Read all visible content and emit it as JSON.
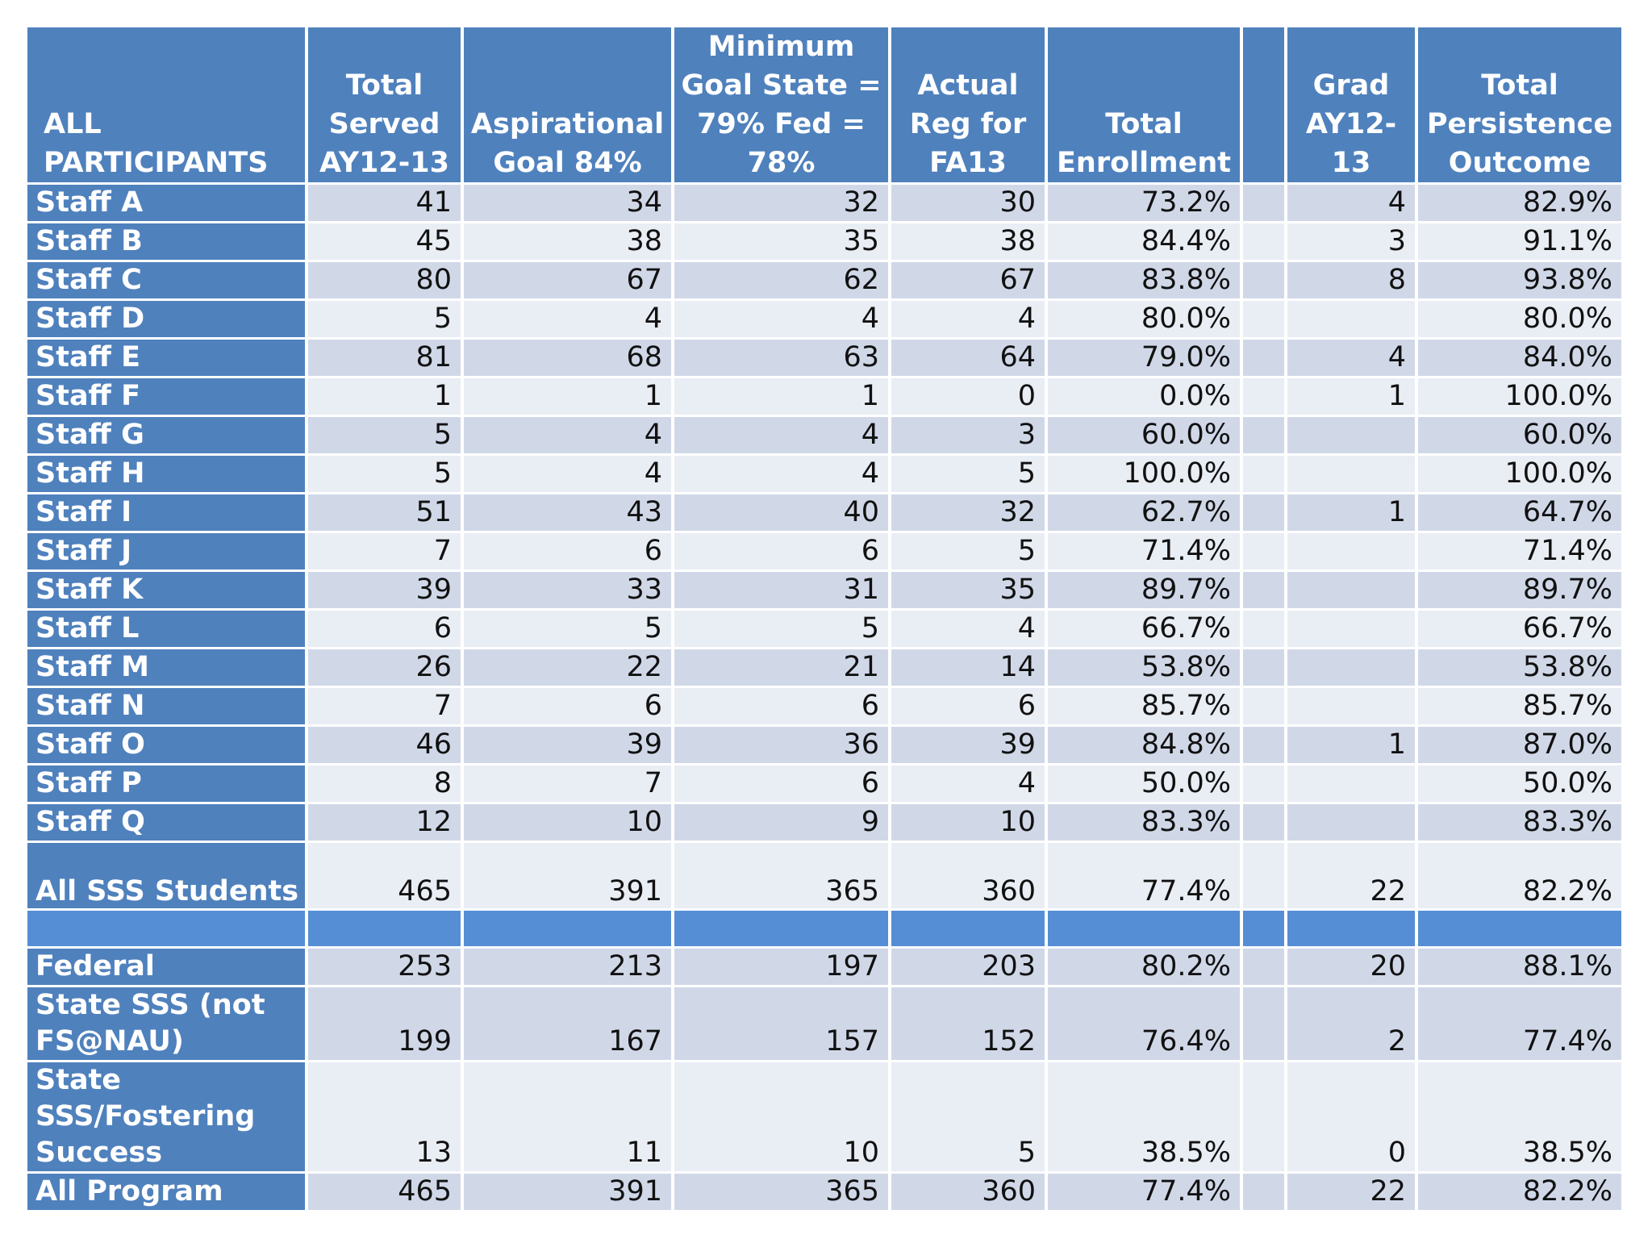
{
  "headers": [
    "ALL PARTICIPANTS",
    "Total Served AY12-13",
    "Aspirational Goal 84%",
    "Minimum Goal State = 79% Fed = 78%",
    "Actual Reg for FA13",
    "Total Enrollment",
    "",
    "Grad AY12-13",
    "Total Persistence Outcome"
  ],
  "staff_rows": [
    {
      "name": "Staff A",
      "served": "41",
      "aspirational": "34",
      "minimum": "32",
      "actual": "30",
      "enrollment": "73.2%",
      "grad": "4",
      "persistence": "82.9%"
    },
    {
      "name": "Staff B",
      "served": "45",
      "aspirational": "38",
      "minimum": "35",
      "actual": "38",
      "enrollment": "84.4%",
      "grad": "3",
      "persistence": "91.1%"
    },
    {
      "name": "Staff C",
      "served": "80",
      "aspirational": "67",
      "minimum": "62",
      "actual": "67",
      "enrollment": "83.8%",
      "grad": "8",
      "persistence": "93.8%"
    },
    {
      "name": "Staff D",
      "served": "5",
      "aspirational": "4",
      "minimum": "4",
      "actual": "4",
      "enrollment": "80.0%",
      "grad": "",
      "persistence": "80.0%"
    },
    {
      "name": "Staff E",
      "served": "81",
      "aspirational": "68",
      "minimum": "63",
      "actual": "64",
      "enrollment": "79.0%",
      "grad": "4",
      "persistence": "84.0%"
    },
    {
      "name": "Staff F",
      "served": "1",
      "aspirational": "1",
      "minimum": "1",
      "actual": "0",
      "enrollment": "0.0%",
      "grad": "1",
      "persistence": "100.0%"
    },
    {
      "name": "Staff G",
      "served": "5",
      "aspirational": "4",
      "minimum": "4",
      "actual": "3",
      "enrollment": "60.0%",
      "grad": "",
      "persistence": "60.0%"
    },
    {
      "name": "Staff H",
      "served": "5",
      "aspirational": "4",
      "minimum": "4",
      "actual": "5",
      "enrollment": "100.0%",
      "grad": "",
      "persistence": "100.0%"
    },
    {
      "name": "Staff I",
      "served": "51",
      "aspirational": "43",
      "minimum": "40",
      "actual": "32",
      "enrollment": "62.7%",
      "grad": "1",
      "persistence": "64.7%"
    },
    {
      "name": "Staff J",
      "served": "7",
      "aspirational": "6",
      "minimum": "6",
      "actual": "5",
      "enrollment": "71.4%",
      "grad": "",
      "persistence": "71.4%"
    },
    {
      "name": "Staff K",
      "served": "39",
      "aspirational": "33",
      "minimum": "31",
      "actual": "35",
      "enrollment": "89.7%",
      "grad": "",
      "persistence": "89.7%"
    },
    {
      "name": "Staff L",
      "served": "6",
      "aspirational": "5",
      "minimum": "5",
      "actual": "4",
      "enrollment": "66.7%",
      "grad": "",
      "persistence": "66.7%"
    },
    {
      "name": "Staff M",
      "served": "26",
      "aspirational": "22",
      "minimum": "21",
      "actual": "14",
      "enrollment": "53.8%",
      "grad": "",
      "persistence": "53.8%"
    },
    {
      "name": "Staff N",
      "served": "7",
      "aspirational": "6",
      "minimum": "6",
      "actual": "6",
      "enrollment": "85.7%",
      "grad": "",
      "persistence": "85.7%"
    },
    {
      "name": "Staff O",
      "served": "46",
      "aspirational": "39",
      "minimum": "36",
      "actual": "39",
      "enrollment": "84.8%",
      "grad": "1",
      "persistence": "87.0%"
    },
    {
      "name": "Staff P",
      "served": "8",
      "aspirational": "7",
      "minimum": "6",
      "actual": "4",
      "enrollment": "50.0%",
      "grad": "",
      "persistence": "50.0%"
    },
    {
      "name": "Staff Q",
      "served": "12",
      "aspirational": "10",
      "minimum": "9",
      "actual": "10",
      "enrollment": "83.3%",
      "grad": "",
      "persistence": "83.3%"
    }
  ],
  "all_sss": {
    "name": "All SSS Students",
    "served": "465",
    "aspirational": "391",
    "minimum": "365",
    "actual": "360",
    "enrollment": "77.4%",
    "grad": "22",
    "persistence": "82.2%"
  },
  "program_rows": [
    {
      "name": "Federal",
      "served": "253",
      "aspirational": "213",
      "minimum": "197",
      "actual": "203",
      "enrollment": "80.2%",
      "grad": "20",
      "persistence": "88.1%"
    },
    {
      "name": "State SSS (not FS@NAU)",
      "served": "199",
      "aspirational": "167",
      "minimum": "157",
      "actual": "152",
      "enrollment": "76.4%",
      "grad": "2",
      "persistence": "77.4%"
    },
    {
      "name": "State SSS/Fostering Success",
      "served": "13",
      "aspirational": "11",
      "minimum": "10",
      "actual": "5",
      "enrollment": "38.5%",
      "grad": "0",
      "persistence": "38.5%"
    },
    {
      "name": "All Program",
      "served": "465",
      "aspirational": "391",
      "minimum": "365",
      "actual": "360",
      "enrollment": "77.4%",
      "grad": "22",
      "persistence": "82.2%"
    }
  ],
  "colors": {
    "header_bg": "#4f81bd",
    "row_odd": "#d0d8e8",
    "row_even": "#e9edf4",
    "separator": "#558ed5"
  }
}
